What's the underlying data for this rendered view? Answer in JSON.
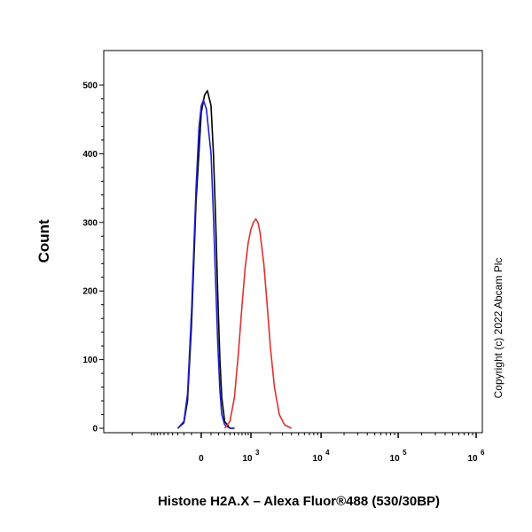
{
  "chart_data": {
    "type": "line",
    "x_scale": "biexponential",
    "xlabel": "Histone H2A.X – Alexa Fluor®488 (530/30BP)",
    "ylabel": "Count",
    "ylim": [
      0,
      500
    ],
    "y_ticks": [
      0,
      100,
      200,
      300,
      400,
      500
    ],
    "x_ticks": [
      {
        "value": 0,
        "base": "0",
        "exp": ""
      },
      {
        "value": 1000,
        "base": "10",
        "exp": "3"
      },
      {
        "value": 10000,
        "base": "10",
        "exp": "4"
      },
      {
        "value": 100000,
        "base": "10",
        "exp": "5"
      },
      {
        "value": 1000000,
        "base": "10",
        "exp": "6"
      }
    ],
    "grid": false,
    "legend": "none",
    "annotation": "Copyright (c) 2022 Abcam Plc",
    "series": [
      {
        "color": "#000000",
        "x": [
          -300,
          -200,
          -150,
          -100,
          -50,
          0,
          30,
          60,
          100,
          130,
          160,
          190,
          220,
          250,
          300,
          400,
          500
        ],
        "values": [
          0,
          8,
          40,
          150,
          330,
          460,
          485,
          492,
          470,
          400,
          300,
          190,
          100,
          45,
          10,
          0,
          0
        ]
      },
      {
        "color": "#1f1fd0",
        "x": [
          -300,
          -200,
          -150,
          -100,
          -50,
          -20,
          0,
          20,
          50,
          100,
          130,
          160,
          190,
          220,
          250,
          300,
          400,
          500
        ],
        "values": [
          0,
          10,
          50,
          170,
          350,
          440,
          470,
          478,
          465,
          400,
          310,
          210,
          120,
          55,
          20,
          5,
          0,
          0
        ]
      },
      {
        "color": "#e03030",
        "x": [
          300,
          400,
          500,
          600,
          700,
          800,
          900,
          1000,
          1100,
          1200,
          1300,
          1400,
          1600,
          1800,
          2000,
          2300,
          2700,
          3200,
          4000
        ],
        "values": [
          0,
          10,
          45,
          110,
          180,
          235,
          270,
          290,
          300,
          305,
          300,
          285,
          240,
          180,
          120,
          60,
          20,
          5,
          0
        ]
      }
    ]
  }
}
